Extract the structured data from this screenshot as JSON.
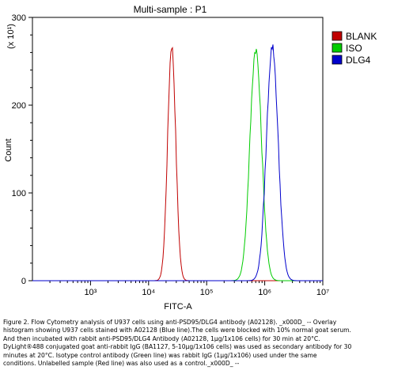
{
  "chart_data": {
    "type": "line",
    "title": "Multi-sample : P1",
    "xlabel": "FITC-A",
    "ylabel": "Count",
    "y_multiplier_label": "(x 10¹)",
    "x_scale": "log",
    "xlim": [
      100,
      10000000
    ],
    "ylim": [
      0,
      300
    ],
    "x_ticks": [
      {
        "value": 1000,
        "label": "10³"
      },
      {
        "value": 10000,
        "label": "10⁴"
      },
      {
        "value": 100000,
        "label": "10⁵"
      },
      {
        "value": 1000000,
        "label": "10⁶"
      },
      {
        "value": 10000000,
        "label": "10⁷"
      }
    ],
    "y_ticks": [
      {
        "value": 0,
        "label": "0"
      },
      {
        "value": 100,
        "label": "100"
      },
      {
        "value": 200,
        "label": "200"
      },
      {
        "value": 300,
        "label": "300"
      }
    ],
    "legend_position": "right",
    "series": [
      {
        "name": "BLANK",
        "color": "#c00000",
        "peak_x": 25000,
        "peak_y": 268,
        "spread_decades": 0.07
      },
      {
        "name": "ISO",
        "color": "#00cc00",
        "peak_x": 700000,
        "peak_y": 264,
        "spread_decades": 0.1
      },
      {
        "name": "DLG4",
        "color": "#0000cc",
        "peak_x": 1350000,
        "peak_y": 267,
        "spread_decades": 0.1
      }
    ]
  },
  "caption": [
    "Figure 2. Flow Cytometry analysis of U937 cells using anti-PSD95/DLG4 antibody (A02128). _x000D_ -- Overlay",
    "histogram showing U937 cells stained with A02128 (Blue line).The cells were blocked with 10% normal goat serum.",
    "And then incubated with rabbit anti-PSD95/DLG4 Antibody (A02128, 1μg/1x106 cells) for 30 min at 20°C.",
    "DyLight®488 conjugated goat anti-rabbit IgG (BA1127, 5-10μg/1x106 cells) was used as secondary antibody for 30",
    "minutes at 20°C. Isotype control antibody (Green line) was rabbit IgG (1μg/1x106) used under the same",
    "conditions. Unlabelled sample (Red line) was also used as a control._x000D_ --"
  ]
}
